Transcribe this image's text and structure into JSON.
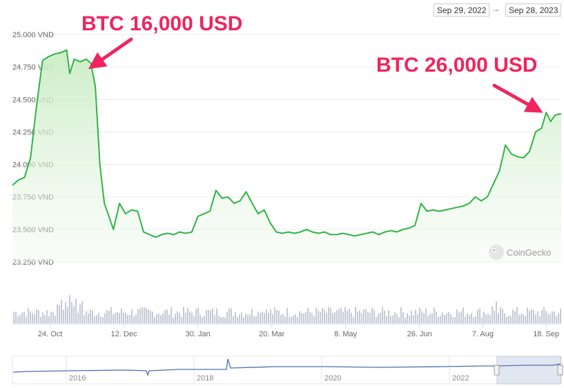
{
  "range": {
    "from": "Sep 29, 2022",
    "arrow": "→",
    "to": "Sep 28, 2023"
  },
  "watermark": "CoinGecko",
  "annotations": [
    {
      "text": "BTC 16,000 USD"
    },
    {
      "text": "BTC 26,000 USD"
    }
  ],
  "colors": {
    "line": "#2fb344",
    "area": "#d9f2d5",
    "volume": "#c5c9d3",
    "annotation": "#f0245e",
    "navigator": "#4a6fb4"
  },
  "chart_data": {
    "type": "area",
    "title": "",
    "xlabel": "",
    "ylabel": "",
    "ylim": [
      23250,
      25000
    ],
    "y_ticks": [
      "25.000 VND",
      "24.750 VND",
      "24.500 VND",
      "24.250 VND",
      "24.000 VND",
      "23.750 VND",
      "23.500 VND",
      "23.250 VND"
    ],
    "y_tick_values": [
      25000,
      24750,
      24500,
      24250,
      24000,
      23750,
      23500,
      23250
    ],
    "x_ticks": [
      "24. Oct",
      "12. Dec",
      "30. Jan",
      "20. Mar",
      "8. May",
      "26. Jun",
      "7. Aug",
      "18. Sep"
    ],
    "x_tick_days": [
      25,
      74,
      123,
      172,
      221,
      270,
      312,
      354
    ],
    "x_start": "2022-09-29",
    "x_end": "2023-09-28",
    "series": [
      {
        "values": [
          [
            "2022-09-29",
            23840
          ],
          [
            "2022-10-03",
            23880
          ],
          [
            "2022-10-07",
            23900
          ],
          [
            "2022-10-11",
            24050
          ],
          [
            "2022-10-15",
            24450
          ],
          [
            "2022-10-19",
            24800
          ],
          [
            "2022-10-23",
            24830
          ],
          [
            "2022-10-27",
            24850
          ],
          [
            "2022-10-31",
            24860
          ],
          [
            "2022-11-04",
            24880
          ],
          [
            "2022-11-06",
            24700
          ],
          [
            "2022-11-09",
            24810
          ],
          [
            "2022-11-13",
            24790
          ],
          [
            "2022-11-17",
            24810
          ],
          [
            "2022-11-20",
            24780
          ],
          [
            "2022-11-23",
            24600
          ],
          [
            "2022-11-26",
            24000
          ],
          [
            "2022-11-29",
            23700
          ],
          [
            "2022-12-02",
            23600
          ],
          [
            "2022-12-05",
            23500
          ],
          [
            "2022-12-09",
            23700
          ],
          [
            "2022-12-13",
            23620
          ],
          [
            "2022-12-17",
            23650
          ],
          [
            "2022-12-21",
            23640
          ],
          [
            "2022-12-25",
            23480
          ],
          [
            "2022-12-29",
            23460
          ],
          [
            "2023-01-02",
            23440
          ],
          [
            "2023-01-06",
            23460
          ],
          [
            "2023-01-10",
            23470
          ],
          [
            "2023-01-14",
            23460
          ],
          [
            "2023-01-18",
            23480
          ],
          [
            "2023-01-22",
            23470
          ],
          [
            "2023-01-26",
            23480
          ],
          [
            "2023-01-30",
            23600
          ],
          [
            "2023-02-03",
            23620
          ],
          [
            "2023-02-07",
            23640
          ],
          [
            "2023-02-11",
            23800
          ],
          [
            "2023-02-15",
            23740
          ],
          [
            "2023-02-19",
            23750
          ],
          [
            "2023-02-23",
            23700
          ],
          [
            "2023-02-27",
            23720
          ],
          [
            "2023-03-03",
            23790
          ],
          [
            "2023-03-07",
            23700
          ],
          [
            "2023-03-11",
            23620
          ],
          [
            "2023-03-15",
            23650
          ],
          [
            "2023-03-19",
            23550
          ],
          [
            "2023-03-23",
            23480
          ],
          [
            "2023-03-27",
            23470
          ],
          [
            "2023-03-31",
            23480
          ],
          [
            "2023-04-04",
            23470
          ],
          [
            "2023-04-08",
            23480
          ],
          [
            "2023-04-12",
            23500
          ],
          [
            "2023-04-16",
            23480
          ],
          [
            "2023-04-20",
            23470
          ],
          [
            "2023-04-24",
            23480
          ],
          [
            "2023-04-28",
            23460
          ],
          [
            "2023-05-02",
            23460
          ],
          [
            "2023-05-06",
            23470
          ],
          [
            "2023-05-10",
            23460
          ],
          [
            "2023-05-14",
            23450
          ],
          [
            "2023-05-18",
            23460
          ],
          [
            "2023-05-22",
            23470
          ],
          [
            "2023-05-26",
            23480
          ],
          [
            "2023-05-30",
            23460
          ],
          [
            "2023-06-03",
            23480
          ],
          [
            "2023-06-07",
            23490
          ],
          [
            "2023-06-11",
            23480
          ],
          [
            "2023-06-15",
            23500
          ],
          [
            "2023-06-19",
            23510
          ],
          [
            "2023-06-23",
            23530
          ],
          [
            "2023-06-27",
            23700
          ],
          [
            "2023-07-01",
            23640
          ],
          [
            "2023-07-05",
            23650
          ],
          [
            "2023-07-09",
            23640
          ],
          [
            "2023-07-13",
            23650
          ],
          [
            "2023-07-17",
            23660
          ],
          [
            "2023-07-21",
            23670
          ],
          [
            "2023-07-25",
            23680
          ],
          [
            "2023-07-29",
            23700
          ],
          [
            "2023-08-02",
            23750
          ],
          [
            "2023-08-06",
            23720
          ],
          [
            "2023-08-10",
            23750
          ],
          [
            "2023-08-14",
            23850
          ],
          [
            "2023-08-18",
            23950
          ],
          [
            "2023-08-22",
            24150
          ],
          [
            "2023-08-26",
            24080
          ],
          [
            "2023-08-30",
            24060
          ],
          [
            "2023-09-03",
            24050
          ],
          [
            "2023-09-07",
            24100
          ],
          [
            "2023-09-11",
            24250
          ],
          [
            "2023-09-15",
            24280
          ],
          [
            "2023-09-18",
            24400
          ],
          [
            "2023-09-21",
            24330
          ],
          [
            "2023-09-24",
            24380
          ],
          [
            "2023-09-28",
            24390
          ]
        ]
      }
    ],
    "navigator": {
      "x_ticks": [
        "2016",
        "2018",
        "2020",
        "2022"
      ]
    },
    "grid": true
  }
}
